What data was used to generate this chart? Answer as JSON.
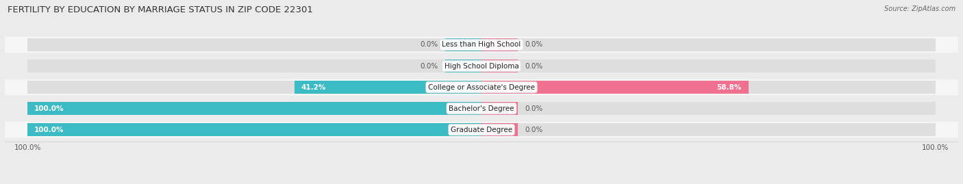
{
  "title": "FERTILITY BY EDUCATION BY MARRIAGE STATUS IN ZIP CODE 22301",
  "source": "Source: ZipAtlas.com",
  "categories": [
    "Less than High School",
    "High School Diploma",
    "College or Associate's Degree",
    "Bachelor's Degree",
    "Graduate Degree"
  ],
  "married": [
    0.0,
    0.0,
    41.2,
    100.0,
    100.0
  ],
  "unmarried": [
    0.0,
    0.0,
    58.8,
    0.0,
    0.0
  ],
  "married_color": "#3DBBC4",
  "unmarried_color": "#F07090",
  "bg_color": "#ebebeb",
  "bar_bg_color": "#dedede",
  "row_bg_light": "#f5f5f5",
  "row_bg_dark": "#ebebeb",
  "title_fontsize": 9.5,
  "label_fontsize": 7.5,
  "source_fontsize": 7.0,
  "legend_fontsize": 8,
  "bar_height": 0.62,
  "stub_size": 8.0,
  "text_color_dark": "#555555",
  "text_color_white": "#ffffff",
  "xlim": 100
}
